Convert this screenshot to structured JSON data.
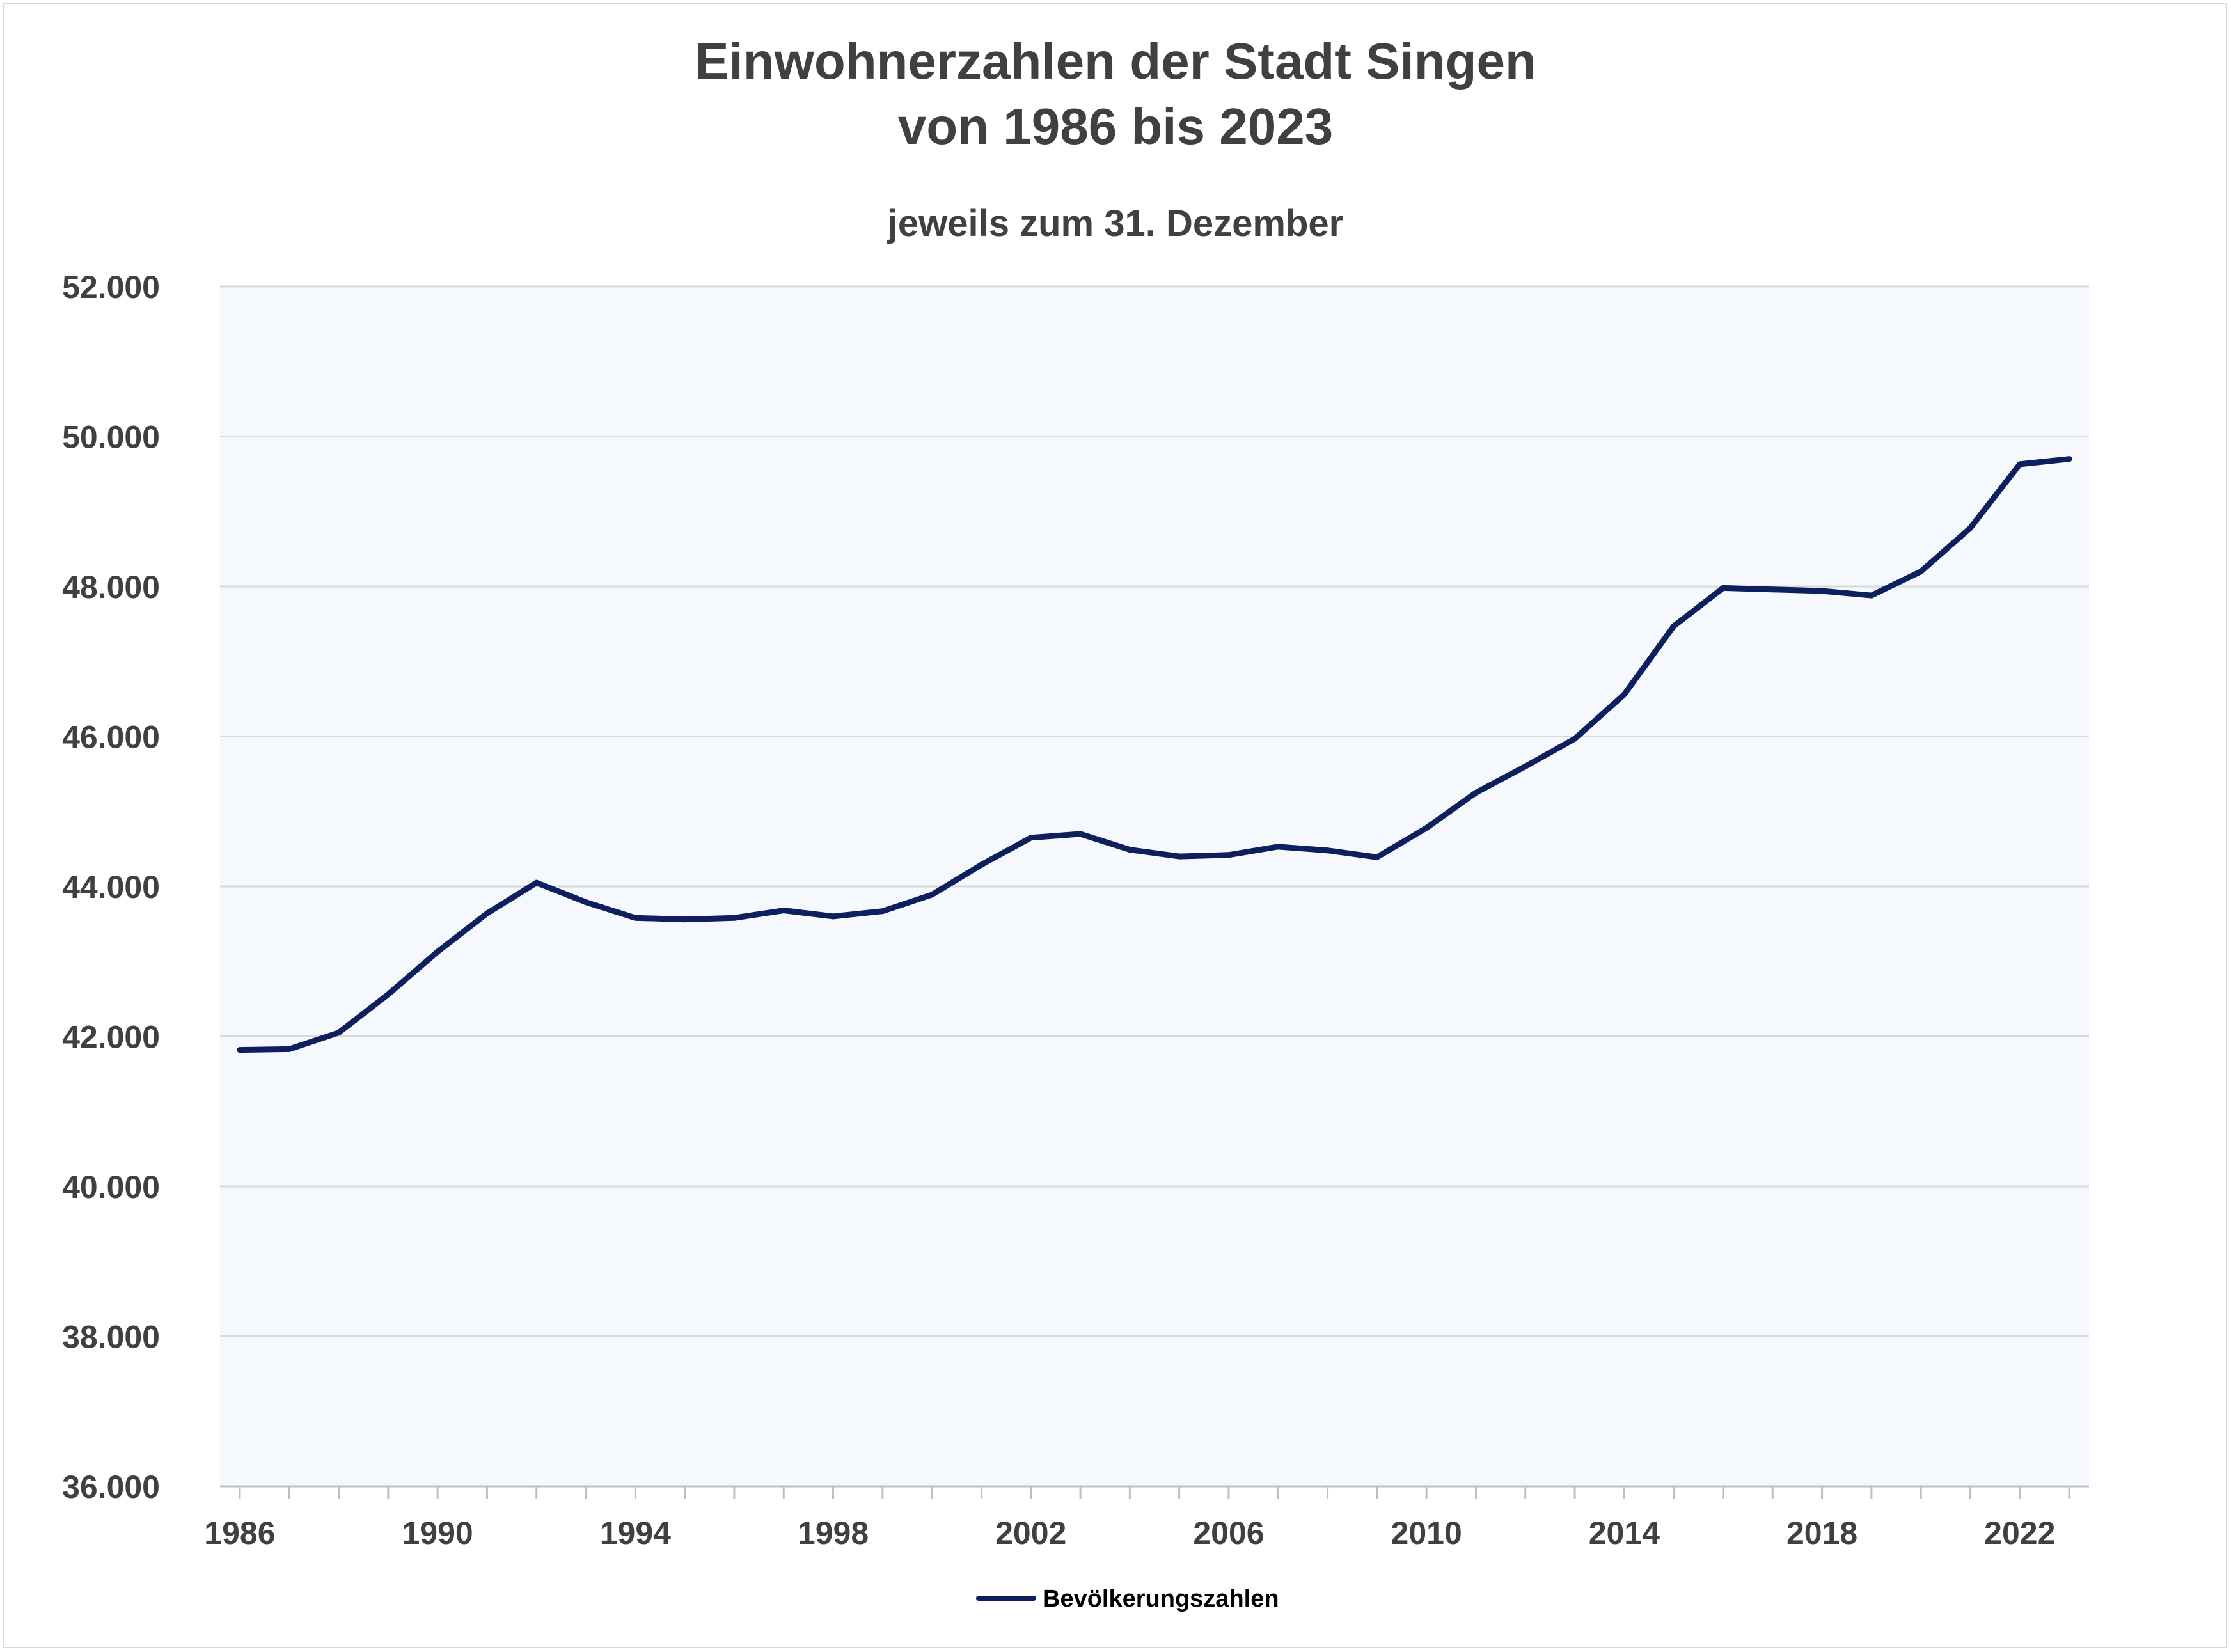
{
  "chart_data": {
    "type": "line",
    "title": "Einwohnerzahlen der Stadt Singen",
    "title_line2": "von 1986 bis 2023",
    "subtitle": "jeweils zum 31. Dezember",
    "xlabel": "",
    "ylabel": "",
    "ylim": [
      36000,
      52000
    ],
    "xlim": [
      1986,
      2023
    ],
    "y_ticks": [
      "36.000",
      "38.000",
      "40.000",
      "42.000",
      "44.000",
      "46.000",
      "48.000",
      "50.000",
      "52.000"
    ],
    "y_tick_values": [
      36000,
      38000,
      40000,
      42000,
      44000,
      46000,
      48000,
      50000,
      52000
    ],
    "x_ticks": [
      "1986",
      "1990",
      "1994",
      "1998",
      "2002",
      "2006",
      "2010",
      "2014",
      "2018",
      "2022"
    ],
    "x_tick_values": [
      1986,
      1990,
      1994,
      1998,
      2002,
      2006,
      2010,
      2014,
      2018,
      2022
    ],
    "grid": true,
    "legend_position": "bottom",
    "plot_background": "#f5f9fd",
    "series": [
      {
        "name": "Bevölkerungszahlen",
        "color": "#0d1f5c",
        "x": [
          1986,
          1987,
          1988,
          1989,
          1990,
          1991,
          1992,
          1993,
          1994,
          1995,
          1996,
          1997,
          1998,
          1999,
          2000,
          2001,
          2002,
          2003,
          2004,
          2005,
          2006,
          2007,
          2008,
          2009,
          2010,
          2011,
          2012,
          2013,
          2014,
          2015,
          2016,
          2017,
          2018,
          2019,
          2020,
          2021,
          2022,
          2023
        ],
        "values": [
          41820,
          41830,
          42050,
          42560,
          43130,
          43640,
          44050,
          43790,
          43580,
          43560,
          43580,
          43680,
          43600,
          43670,
          43890,
          44290,
          44650,
          44700,
          44490,
          44400,
          44420,
          44530,
          44480,
          44390,
          44780,
          45250,
          45600,
          45970,
          46560,
          47470,
          47980,
          47960,
          47940,
          47880,
          48200,
          48780,
          49630,
          49700
        ]
      }
    ]
  }
}
